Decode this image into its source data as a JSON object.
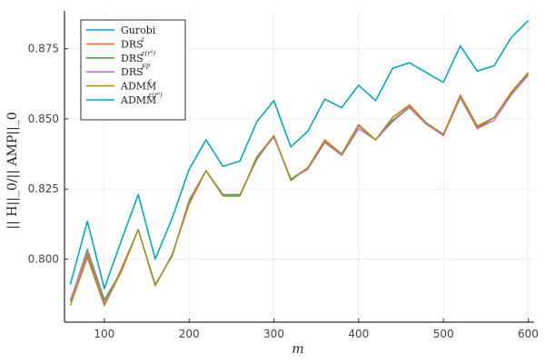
{
  "chart_data": {
    "type": "line",
    "xlabel": "m",
    "ylabel": "|| H||_0/|| AMP||_0",
    "xlim": [
      53,
      607
    ],
    "ylim": [
      0.7775,
      0.8885
    ],
    "xticks": [
      100,
      200,
      300,
      400,
      500,
      600
    ],
    "yticks": [
      0.8,
      0.825,
      0.85,
      0.875
    ],
    "xtick_labels": [
      "100",
      "200",
      "300",
      "400",
      "500",
      "600"
    ],
    "ytick_labels": [
      "0.800",
      "0.825",
      "0.850",
      "0.875"
    ],
    "grid": true,
    "legend_position": "top-left",
    "x": [
      60,
      80,
      100,
      120,
      140,
      160,
      180,
      200,
      220,
      240,
      260,
      280,
      300,
      320,
      340,
      360,
      380,
      400,
      420,
      440,
      460,
      480,
      500,
      520,
      540,
      560,
      580,
      600
    ],
    "series": [
      {
        "name": "Gurobi",
        "color": "#009AFA",
        "values": [
          0.791,
          0.8135,
          0.7895,
          0.8065,
          0.823,
          0.8,
          0.8145,
          0.832,
          0.8425,
          0.833,
          0.835,
          0.849,
          0.8565,
          0.84,
          0.8455,
          0.857,
          0.854,
          0.862,
          0.8565,
          0.868,
          0.87,
          0.8665,
          0.863,
          0.876,
          0.867,
          0.869,
          0.879,
          0.885
        ]
      },
      {
        "name": "DRS",
        "sup": "ε",
        "color": "#E26F46",
        "values": [
          0.7835,
          0.8005,
          0.7835,
          0.7965,
          0.8105,
          0.7905,
          0.8015,
          0.8195,
          0.8315,
          0.8225,
          0.8225,
          0.8365,
          0.8435,
          0.8285,
          0.8325,
          0.8425,
          0.8375,
          0.848,
          0.8425,
          0.8505,
          0.855,
          0.8485,
          0.8445,
          0.8585,
          0.8475,
          0.8505,
          0.8595,
          0.8665
        ]
      },
      {
        "name": "DRS",
        "sup": "ε(r⁰)",
        "color": "#3EA44E",
        "values": [
          0.785,
          0.8035,
          0.7855,
          0.7955,
          0.8105,
          0.791,
          0.801,
          0.821,
          0.8315,
          0.823,
          0.823,
          0.8355,
          0.844,
          0.828,
          0.8325,
          0.8415,
          0.837,
          0.8465,
          0.8425,
          0.8495,
          0.854,
          0.848,
          0.8445,
          0.8575,
          0.8465,
          0.8505,
          0.859,
          0.866
        ]
      },
      {
        "name": "DRS",
        "sup": "FP",
        "color": "#C271D2",
        "values": [
          0.7855,
          0.8025,
          0.7845,
          0.7955,
          0.8105,
          0.7905,
          0.8015,
          0.8205,
          0.8315,
          0.8225,
          0.8225,
          0.836,
          0.8435,
          0.8285,
          0.832,
          0.8415,
          0.837,
          0.8465,
          0.8425,
          0.849,
          0.854,
          0.848,
          0.844,
          0.8575,
          0.8465,
          0.8495,
          0.8585,
          0.8655
        ]
      },
      {
        "name": "ADMM",
        "sup": "ε",
        "color": "#AC8E18",
        "values": [
          0.7835,
          0.8015,
          0.7835,
          0.7955,
          0.8105,
          0.7905,
          0.8015,
          0.82,
          0.8315,
          0.8225,
          0.8225,
          0.8365,
          0.844,
          0.8285,
          0.8325,
          0.842,
          0.8375,
          0.8475,
          0.8425,
          0.8505,
          0.8545,
          0.8485,
          0.8445,
          0.858,
          0.847,
          0.8505,
          0.859,
          0.8665
        ]
      },
      {
        "name": "ADMM",
        "sup": "ε(r⁰)",
        "color": "#00A9AD",
        "values": [
          0.791,
          0.8135,
          0.7895,
          0.8065,
          0.823,
          0.8,
          0.8145,
          0.832,
          0.8425,
          0.833,
          0.835,
          0.849,
          0.8565,
          0.84,
          0.8455,
          0.857,
          0.854,
          0.862,
          0.8565,
          0.868,
          0.87,
          0.8665,
          0.863,
          0.876,
          0.867,
          0.869,
          0.879,
          0.885
        ]
      }
    ]
  }
}
